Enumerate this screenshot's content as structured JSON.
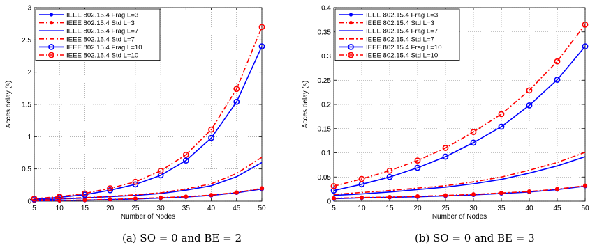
{
  "colors": {
    "frag": "#0000ff",
    "std": "#ff0000"
  },
  "captions": [
    "(a) SO = 0 and BE = 2",
    "(b) SO = 0 and BE = 3"
  ],
  "chart_data": [
    {
      "type": "line",
      "xlabel": "Number of Nodes",
      "ylabel": "Acces delay (s)",
      "xlim": [
        5,
        50
      ],
      "ylim": [
        0,
        3
      ],
      "x_ticks": [
        "5",
        "10",
        "15",
        "20",
        "25",
        "30",
        "35",
        "40",
        "45",
        "50"
      ],
      "y_ticks": [
        "0",
        "0.5",
        "1",
        "1.5",
        "2",
        "2.5",
        "3"
      ],
      "grid": true,
      "legend_position": "top-left",
      "x": [
        5,
        10,
        15,
        20,
        25,
        30,
        35,
        40,
        45,
        50
      ],
      "series": [
        {
          "name": "IEEE 802.15.4 Frag L=3",
          "color": "#0000ff",
          "dash": "solid",
          "marker": "dot",
          "values": [
            0.005,
            0.01,
            0.015,
            0.025,
            0.035,
            0.05,
            0.065,
            0.09,
            0.13,
            0.19
          ]
        },
        {
          "name": "IEEE 802.15.4 Std L=3",
          "color": "#ff0000",
          "dash": "dashdot",
          "marker": "dot",
          "values": [
            0.006,
            0.012,
            0.018,
            0.028,
            0.04,
            0.055,
            0.07,
            0.095,
            0.135,
            0.2
          ]
        },
        {
          "name": "IEEE 802.15.4 Frag L=7",
          "color": "#0000ff",
          "dash": "solid",
          "marker": "none",
          "values": [
            0.02,
            0.035,
            0.05,
            0.07,
            0.09,
            0.12,
            0.17,
            0.24,
            0.38,
            0.6
          ]
        },
        {
          "name": "IEEE 802.15.4 Std L=7",
          "color": "#ff0000",
          "dash": "dashdot",
          "marker": "none",
          "values": [
            0.025,
            0.04,
            0.055,
            0.075,
            0.1,
            0.13,
            0.19,
            0.27,
            0.43,
            0.68
          ]
        },
        {
          "name": "IEEE 802.15.4 Frag L=10",
          "color": "#0000ff",
          "dash": "solid",
          "marker": "circle",
          "values": [
            0.03,
            0.06,
            0.1,
            0.17,
            0.26,
            0.4,
            0.63,
            0.98,
            1.54,
            2.4
          ]
        },
        {
          "name": "IEEE 802.15.4 Std L=10",
          "color": "#ff0000",
          "dash": "dashdot",
          "marker": "circle",
          "values": [
            0.04,
            0.07,
            0.12,
            0.2,
            0.3,
            0.47,
            0.72,
            1.11,
            1.74,
            2.7
          ]
        }
      ]
    },
    {
      "type": "line",
      "xlabel": "Number of Nodes",
      "ylabel": "Acces delay (s)",
      "xlim": [
        5,
        50
      ],
      "ylim": [
        0,
        0.4
      ],
      "x_ticks": [
        "5",
        "10",
        "15",
        "20",
        "25",
        "30",
        "35",
        "40",
        "45",
        "50"
      ],
      "y_ticks": [
        "0",
        "0.05",
        "0.1",
        "0.15",
        "0.2",
        "0.25",
        "0.3",
        "0.35",
        "0.4"
      ],
      "grid": true,
      "legend_position": "top-left",
      "x": [
        5,
        10,
        15,
        20,
        25,
        30,
        35,
        40,
        45,
        50
      ],
      "series": [
        {
          "name": "IEEE 802.15.4 Frag L=3",
          "color": "#0000ff",
          "dash": "solid",
          "marker": "dot",
          "values": [
            0.005,
            0.007,
            0.008,
            0.009,
            0.011,
            0.013,
            0.016,
            0.019,
            0.024,
            0.031
          ]
        },
        {
          "name": "IEEE 802.15.4 Std L=3",
          "color": "#ff0000",
          "dash": "dashdot",
          "marker": "dot",
          "values": [
            0.006,
            0.0075,
            0.0085,
            0.01,
            0.012,
            0.014,
            0.017,
            0.02,
            0.025,
            0.032
          ]
        },
        {
          "name": "IEEE 802.15.4 Frag L=7",
          "color": "#0000ff",
          "dash": "solid",
          "marker": "none",
          "values": [
            0.012,
            0.015,
            0.019,
            0.024,
            0.029,
            0.036,
            0.045,
            0.058,
            0.073,
            0.092
          ]
        },
        {
          "name": "IEEE 802.15.4 Std L=7",
          "color": "#ff0000",
          "dash": "dashdot",
          "marker": "none",
          "values": [
            0.014,
            0.018,
            0.022,
            0.027,
            0.032,
            0.04,
            0.05,
            0.064,
            0.08,
            0.101
          ]
        },
        {
          "name": "IEEE 802.15.4 Frag L=10",
          "color": "#0000ff",
          "dash": "solid",
          "marker": "circle",
          "values": [
            0.022,
            0.035,
            0.05,
            0.069,
            0.092,
            0.121,
            0.154,
            0.198,
            0.251,
            0.32
          ]
        },
        {
          "name": "IEEE 802.15.4 Std L=10",
          "color": "#ff0000",
          "dash": "dashdot",
          "marker": "circle",
          "values": [
            0.031,
            0.046,
            0.063,
            0.084,
            0.11,
            0.143,
            0.18,
            0.229,
            0.289,
            0.365
          ]
        }
      ]
    }
  ]
}
